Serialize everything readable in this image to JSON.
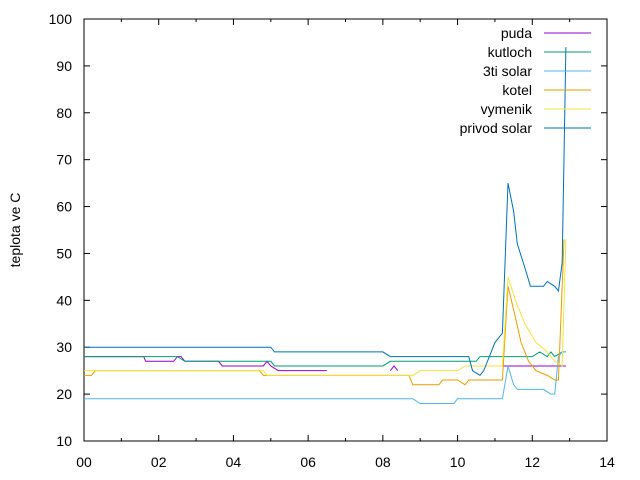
{
  "chart_data": {
    "type": "line",
    "title": "",
    "xlabel": "",
    "ylabel": "teplota ve C",
    "xlim": [
      0,
      14
    ],
    "ylim": [
      10,
      100
    ],
    "x_ticks": [
      0,
      2,
      4,
      6,
      8,
      10,
      12,
      14
    ],
    "x_tick_labels": [
      "00",
      "02",
      "04",
      "06",
      "08",
      "10",
      "12",
      "14"
    ],
    "y_ticks": [
      10,
      20,
      30,
      40,
      50,
      60,
      70,
      80,
      90,
      100
    ],
    "y_tick_labels": [
      "10",
      "20",
      "30",
      "40",
      "50",
      "60",
      "70",
      "80",
      "90",
      "100"
    ],
    "grid": false,
    "legend_position": "top-right",
    "series": [
      {
        "name": "puda",
        "color": "#9400d3",
        "points": [
          [
            0,
            28
          ],
          [
            1.6,
            28
          ],
          [
            1.65,
            27
          ],
          [
            2.4,
            27
          ],
          [
            2.5,
            28
          ],
          [
            2.6,
            28
          ],
          [
            2.7,
            27
          ],
          [
            3.6,
            27
          ],
          [
            3.7,
            26
          ],
          [
            4.8,
            26
          ],
          [
            4.9,
            27
          ],
          [
            5.0,
            26
          ],
          [
            5.2,
            25
          ],
          [
            6.5,
            25
          ],
          null,
          [
            8.2,
            25
          ],
          [
            8.3,
            26
          ],
          [
            8.4,
            25
          ],
          null,
          [
            10.9,
            26
          ],
          [
            12.9,
            26
          ]
        ]
      },
      {
        "name": "kutloch",
        "color": "#009e73",
        "points": [
          [
            0,
            28
          ],
          [
            2.5,
            28
          ],
          [
            2.7,
            27
          ],
          [
            5.0,
            27
          ],
          [
            5.1,
            26
          ],
          [
            8.0,
            26
          ],
          [
            8.2,
            27
          ],
          [
            8.5,
            27
          ],
          [
            8.6,
            27
          ],
          [
            9.0,
            27
          ],
          [
            10.5,
            27
          ],
          [
            10.6,
            28
          ],
          [
            12.0,
            28
          ],
          [
            12.2,
            29
          ],
          [
            12.4,
            28
          ],
          [
            12.5,
            29
          ],
          [
            12.6,
            28
          ],
          [
            12.8,
            29
          ],
          [
            12.9,
            29
          ]
        ]
      },
      {
        "name": "3ti solar",
        "color": "#56b4e9",
        "points": [
          [
            0,
            19
          ],
          [
            8.8,
            19
          ],
          [
            9.0,
            18
          ],
          [
            9.9,
            18
          ],
          [
            10.0,
            19
          ],
          [
            11.2,
            19
          ],
          [
            11.35,
            26
          ],
          [
            11.5,
            22
          ],
          [
            11.6,
            21
          ],
          [
            12.0,
            21
          ],
          [
            12.3,
            21
          ],
          [
            12.5,
            20
          ],
          [
            12.6,
            20
          ],
          [
            12.7,
            28
          ],
          [
            12.8,
            29
          ],
          [
            12.9,
            29
          ]
        ]
      },
      {
        "name": "kotel",
        "color": "#e69f00",
        "points": [
          [
            0,
            24
          ],
          [
            0.2,
            24
          ],
          [
            0.3,
            25
          ],
          [
            4.7,
            25
          ],
          [
            4.8,
            24
          ],
          [
            8.7,
            24
          ],
          [
            8.8,
            22
          ],
          [
            9.5,
            22
          ],
          [
            9.6,
            23
          ],
          [
            10.0,
            23
          ],
          [
            10.2,
            22
          ],
          [
            10.3,
            23
          ],
          [
            11.2,
            23
          ],
          [
            11.35,
            43
          ],
          [
            11.5,
            38
          ],
          [
            11.7,
            31
          ],
          [
            11.9,
            27
          ],
          [
            12.1,
            25
          ],
          [
            12.4,
            24
          ],
          [
            12.6,
            23
          ],
          [
            12.7,
            23
          ],
          [
            12.85,
            53
          ]
        ]
      },
      {
        "name": "vymenik",
        "color": "#f0e442",
        "points": [
          [
            0,
            25
          ],
          [
            4.8,
            25
          ],
          [
            4.9,
            24
          ],
          [
            8.8,
            24
          ],
          [
            9.0,
            25
          ],
          [
            10.0,
            25
          ],
          [
            10.2,
            26
          ],
          [
            11.2,
            26
          ],
          [
            11.35,
            45
          ],
          [
            11.55,
            40
          ],
          [
            11.8,
            35
          ],
          [
            12.1,
            31
          ],
          [
            12.4,
            29
          ],
          [
            12.6,
            27
          ],
          [
            12.8,
            26
          ],
          [
            12.9,
            53
          ]
        ]
      },
      {
        "name": "privod solar",
        "color": "#0072b2",
        "points": [
          [
            0,
            30
          ],
          [
            5.0,
            30
          ],
          [
            5.1,
            29
          ],
          [
            8.0,
            29
          ],
          [
            8.2,
            28
          ],
          [
            10.3,
            28
          ],
          [
            10.4,
            25
          ],
          [
            10.6,
            24
          ],
          [
            10.7,
            25
          ],
          [
            10.9,
            29
          ],
          [
            11.0,
            31
          ],
          [
            11.2,
            33
          ],
          [
            11.35,
            65
          ],
          [
            11.5,
            59
          ],
          [
            11.6,
            52
          ],
          [
            11.8,
            47
          ],
          [
            11.95,
            43
          ],
          [
            12.2,
            43
          ],
          [
            12.3,
            43
          ],
          [
            12.4,
            44
          ],
          [
            12.6,
            43
          ],
          [
            12.7,
            42
          ],
          [
            12.8,
            48
          ],
          [
            12.9,
            94
          ]
        ]
      }
    ]
  }
}
